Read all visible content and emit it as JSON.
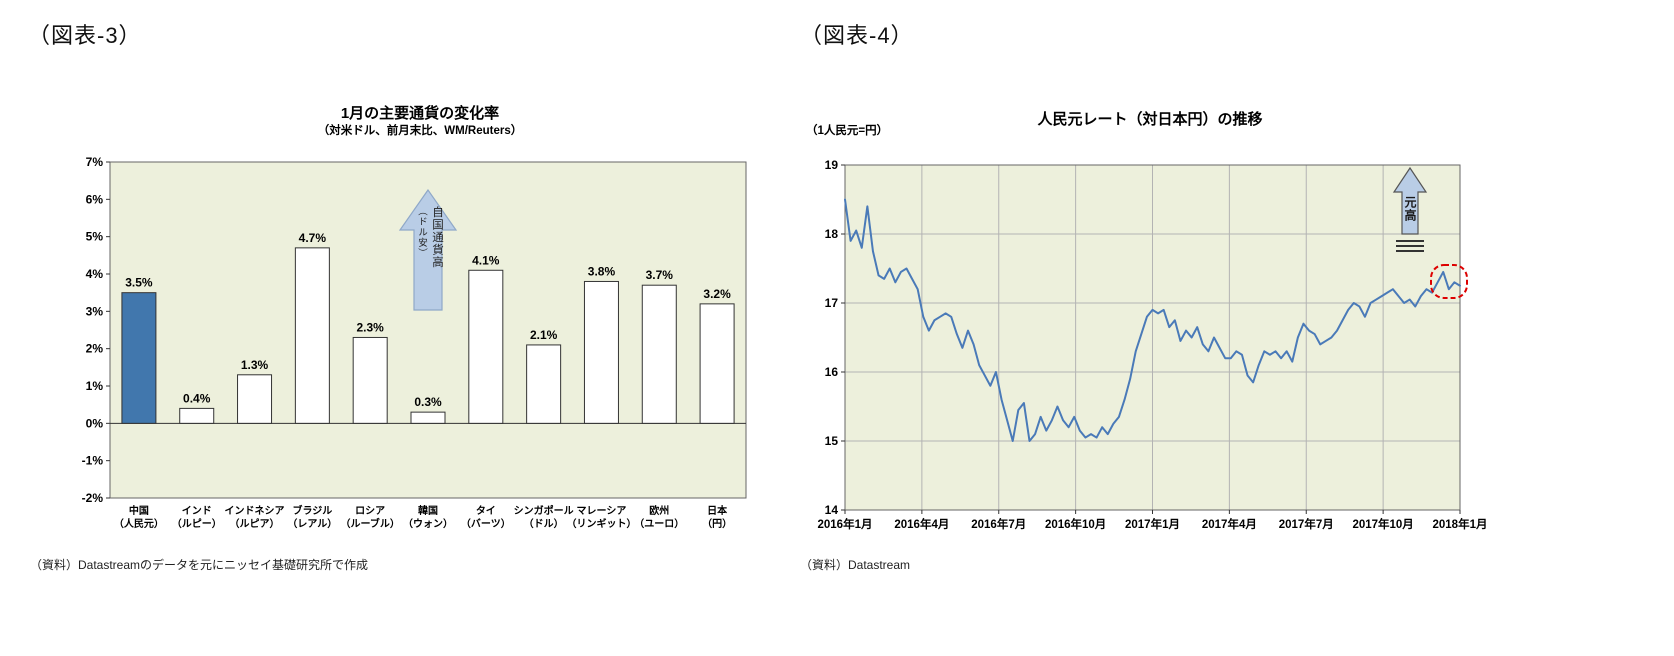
{
  "figure3": {
    "label": "（図表-3）",
    "title": "1月の主要通貨の変化率",
    "subtitle": "（対米ドル、前月末比、WM/Reuters）",
    "arrow_label_main": "自国通貨高",
    "arrow_label_sub": "（ドル安）",
    "source": "（資料）Datastreamのデータを元にニッセイ基礎研究所で作成"
  },
  "figure4": {
    "label": "（図表-4）",
    "title": "人民元レート（対日本円）の推移",
    "unit_label": "（1人民元=円）",
    "arrow_label": "元高",
    "source": "（資料）Datastream"
  },
  "colors": {
    "plot_bg": "#edf0dc",
    "bar_fill": "#ffffff",
    "bar_highlight": "#4177ad",
    "bar_stroke": "#333333",
    "line": "#4a7ab8",
    "grid": "#b3b3b3",
    "border": "#666666",
    "axis": "#333333",
    "arrow_fill": "#b9cde6",
    "arrow_stroke": "#8fa8c8",
    "annotation_red": "#dd0000"
  },
  "chart_data": [
    {
      "type": "bar",
      "title": "1月の主要通貨の変化率",
      "subtitle": "（対米ドル、前月末比、WM/Reuters）",
      "categories": [
        "中国",
        "インド",
        "インドネシア",
        "ブラジル",
        "ロシア",
        "韓国",
        "タイ",
        "シンガポール",
        "マレーシア",
        "欧州",
        "日本"
      ],
      "sub_labels": [
        "（人民元）",
        "（ルピー）",
        "（ルピア）",
        "（レアル）",
        "（ルーブル）",
        "（ウォン）",
        "（バーツ）",
        "（ドル）",
        "（リンギット）",
        "（ユーロ）",
        "（円）"
      ],
      "values": [
        3.5,
        0.4,
        1.3,
        4.7,
        2.3,
        0.3,
        4.1,
        2.1,
        3.8,
        3.7,
        3.2
      ],
      "unit": "%",
      "ylim": [
        -2,
        7
      ],
      "ytick_step": 1,
      "highlight_index": 0,
      "grid": false,
      "legend": false,
      "annotation": "自国通貨高（ドル安）上向き矢印"
    },
    {
      "type": "line",
      "title": "人民元レート（対日本円）の推移",
      "ylabel": "（1人民元=円）",
      "ylim": [
        14,
        19
      ],
      "ytick_step": 1,
      "x_tick_labels": [
        "2016年1月",
        "2016年4月",
        "2016年7月",
        "2016年10月",
        "2017年1月",
        "2017年4月",
        "2017年7月",
        "2017年10月",
        "2018年1月"
      ],
      "grid": true,
      "legend": false,
      "annotations": [
        "元高（上向き矢印）",
        "直近データを赤点線で囲み"
      ],
      "values": [
        18.5,
        17.9,
        18.05,
        17.8,
        18.4,
        17.75,
        17.4,
        17.35,
        17.5,
        17.3,
        17.45,
        17.5,
        17.35,
        17.2,
        16.8,
        16.6,
        16.75,
        16.8,
        16.85,
        16.8,
        16.55,
        16.35,
        16.6,
        16.4,
        16.1,
        15.95,
        15.8,
        16.0,
        15.6,
        15.3,
        15.0,
        15.45,
        15.55,
        15.0,
        15.1,
        15.35,
        15.15,
        15.3,
        15.5,
        15.3,
        15.2,
        15.35,
        15.15,
        15.05,
        15.1,
        15.05,
        15.2,
        15.1,
        15.25,
        15.35,
        15.6,
        15.9,
        16.3,
        16.55,
        16.8,
        16.9,
        16.85,
        16.9,
        16.65,
        16.75,
        16.45,
        16.6,
        16.5,
        16.65,
        16.4,
        16.3,
        16.5,
        16.35,
        16.2,
        16.2,
        16.3,
        16.25,
        15.95,
        15.85,
        16.1,
        16.3,
        16.25,
        16.3,
        16.2,
        16.3,
        16.15,
        16.5,
        16.7,
        16.6,
        16.55,
        16.4,
        16.45,
        16.5,
        16.6,
        16.75,
        16.9,
        17.0,
        16.95,
        16.8,
        17.0,
        17.05,
        17.1,
        17.15,
        17.2,
        17.1,
        17.0,
        17.05,
        16.95,
        17.1,
        17.2,
        17.15,
        17.3,
        17.45,
        17.2,
        17.3,
        17.25
      ]
    }
  ]
}
